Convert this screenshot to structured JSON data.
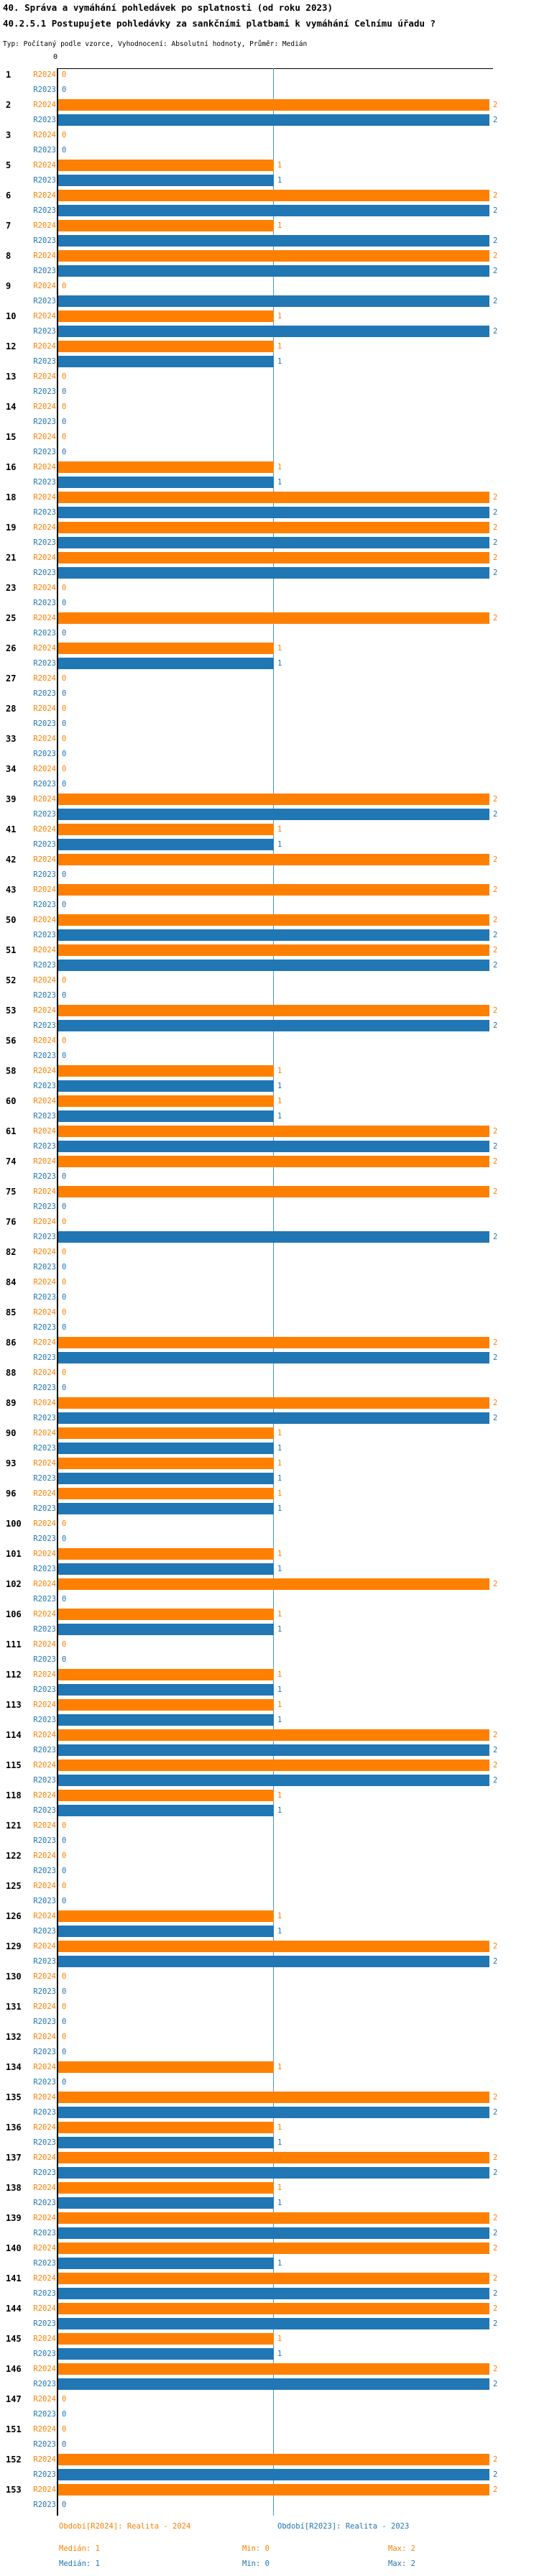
{
  "header": {
    "title": "40. Správa a vymáhání pohledávek po splatnosti (od roku 2023)",
    "subtitle": "40.2.5.1 Postupujete pohledávky za sankčními platbami k vymáhání Celnímu úřadu ?",
    "meta": "Typ: Počítaný podle vzorce, Vyhodnocení: Absolutní hodnoty, Průměr: Medián"
  },
  "axis": {
    "zero_tick": "0"
  },
  "colors": {
    "r2024": "#ff8000",
    "r2023": "#2176b4",
    "median_line": "#4d94c8",
    "axis": "#000000"
  },
  "legend": {
    "r2024": "Období[R2024]: Realita - 2024",
    "r2023": "Období[R2023]: Realita - 2023"
  },
  "stats": {
    "r2024": {
      "median": "Medián: 1",
      "min": "Min: 0",
      "max": "Max: 2"
    },
    "r2023": {
      "median": "Medián: 1",
      "min": "Min: 0",
      "max": "Max: 2"
    }
  },
  "chart_data": {
    "type": "bar",
    "orientation": "horizontal",
    "xlim": [
      0,
      2
    ],
    "grid": false,
    "median_line_x": 1,
    "legend_position": "bottom",
    "categories": [
      "1",
      "2",
      "3",
      "5",
      "6",
      "7",
      "8",
      "9",
      "10",
      "12",
      "13",
      "14",
      "15",
      "16",
      "18",
      "19",
      "21",
      "23",
      "25",
      "26",
      "27",
      "28",
      "33",
      "34",
      "39",
      "41",
      "42",
      "43",
      "50",
      "51",
      "52",
      "53",
      "56",
      "58",
      "60",
      "61",
      "74",
      "75",
      "76",
      "82",
      "84",
      "85",
      "86",
      "88",
      "89",
      "90",
      "93",
      "96",
      "100",
      "101",
      "102",
      "106",
      "111",
      "112",
      "113",
      "114",
      "115",
      "118",
      "121",
      "122",
      "125",
      "126",
      "129",
      "130",
      "131",
      "132",
      "134",
      "135",
      "136",
      "137",
      "138",
      "139",
      "140",
      "141",
      "144",
      "145",
      "146",
      "147",
      "151",
      "152",
      "153"
    ],
    "series": [
      {
        "name": "R2024",
        "values": [
          0,
          2,
          0,
          1,
          2,
          1,
          2,
          0,
          1,
          1,
          0,
          0,
          0,
          1,
          2,
          2,
          2,
          0,
          2,
          1,
          0,
          0,
          0,
          0,
          2,
          1,
          2,
          2,
          2,
          2,
          0,
          2,
          0,
          1,
          1,
          2,
          2,
          2,
          0,
          0,
          0,
          0,
          2,
          0,
          2,
          1,
          1,
          1,
          0,
          1,
          2,
          1,
          0,
          1,
          1,
          2,
          2,
          1,
          0,
          0,
          0,
          1,
          2,
          0,
          0,
          0,
          1,
          2,
          1,
          2,
          1,
          2,
          2,
          2,
          2,
          1,
          2,
          0,
          0,
          2,
          2
        ]
      },
      {
        "name": "R2023",
        "values": [
          0,
          2,
          0,
          1,
          2,
          2,
          2,
          2,
          2,
          1,
          0,
          0,
          0,
          1,
          2,
          2,
          2,
          0,
          0,
          1,
          0,
          0,
          0,
          0,
          2,
          1,
          0,
          0,
          2,
          2,
          0,
          2,
          0,
          1,
          1,
          2,
          0,
          0,
          2,
          0,
          0,
          0,
          2,
          0,
          2,
          1,
          1,
          1,
          0,
          1,
          0,
          1,
          0,
          1,
          1,
          2,
          2,
          1,
          0,
          0,
          0,
          1,
          2,
          0,
          0,
          0,
          0,
          2,
          1,
          2,
          1,
          2,
          1,
          2,
          2,
          1,
          2,
          0,
          0,
          2,
          0
        ]
      }
    ]
  }
}
